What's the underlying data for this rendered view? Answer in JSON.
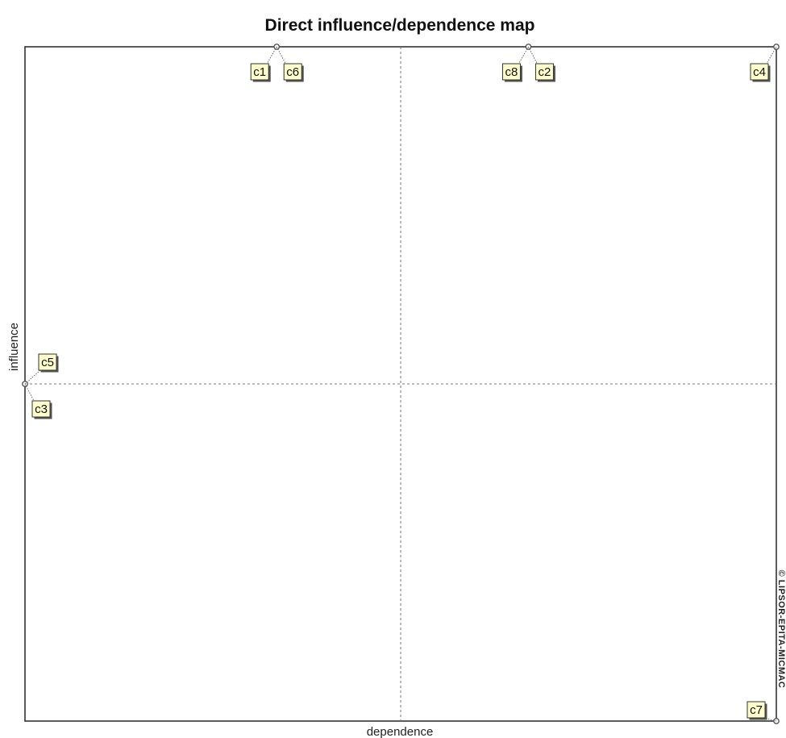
{
  "chart_data": {
    "type": "scatter",
    "title": "Direct influence/dependence map",
    "xlabel": "dependence",
    "ylabel": "influence",
    "grid": false,
    "quadrant_lines": true,
    "xlim": [
      0,
      100
    ],
    "ylim": [
      0,
      100
    ],
    "quadrant_divider": {
      "x": 50,
      "y": 50
    },
    "points": [
      {
        "label": "c1",
        "x": 33.5,
        "y": 100,
        "label_side": "below-left"
      },
      {
        "label": "c6",
        "x": 33.5,
        "y": 100,
        "label_side": "below-right"
      },
      {
        "label": "c8",
        "x": 67,
        "y": 100,
        "label_side": "below-left"
      },
      {
        "label": "c2",
        "x": 67,
        "y": 100,
        "label_side": "below-right"
      },
      {
        "label": "c4",
        "x": 100,
        "y": 100,
        "label_side": "below-left"
      },
      {
        "label": "c5",
        "x": 0,
        "y": 50,
        "label_side": "above-right"
      },
      {
        "label": "c3",
        "x": 0,
        "y": 50,
        "label_side": "below-right"
      },
      {
        "label": "c7",
        "x": 100,
        "y": 0,
        "label_side": "above-left"
      }
    ],
    "colors": {
      "frame": "#333333",
      "divider": "#777777",
      "label_fill": "#ffffcc",
      "label_border": "#333333",
      "marker": "#555555"
    }
  },
  "watermark": "© LIPSOR-EPITA-MICMAC"
}
